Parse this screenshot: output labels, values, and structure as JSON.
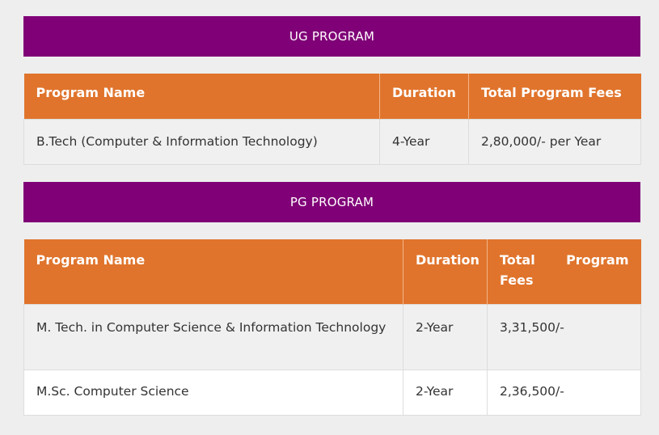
{
  "ug": {
    "title": "UG PROGRAM",
    "headers": [
      "Program Name",
      "Duration",
      "Total Program Fees"
    ],
    "rows": [
      [
        "B.Tech (Computer & Information Technology)",
        "4-Year",
        "2,80,000/- per Year"
      ]
    ]
  },
  "pg": {
    "title": "PG PROGRAM",
    "headers": [
      "Program Name",
      "Duration",
      "Total Program Fees"
    ],
    "rows": [
      [
        "M. Tech. in Computer Science & Information Technology",
        "2-Year",
        "3,31,500/-"
      ],
      [
        "M.Sc. Computer Science",
        "2-Year",
        "2,36,500/-"
      ]
    ]
  },
  "colors": {
    "banner": "#800077",
    "header": "#e0742c",
    "background": "#eeeeee"
  }
}
